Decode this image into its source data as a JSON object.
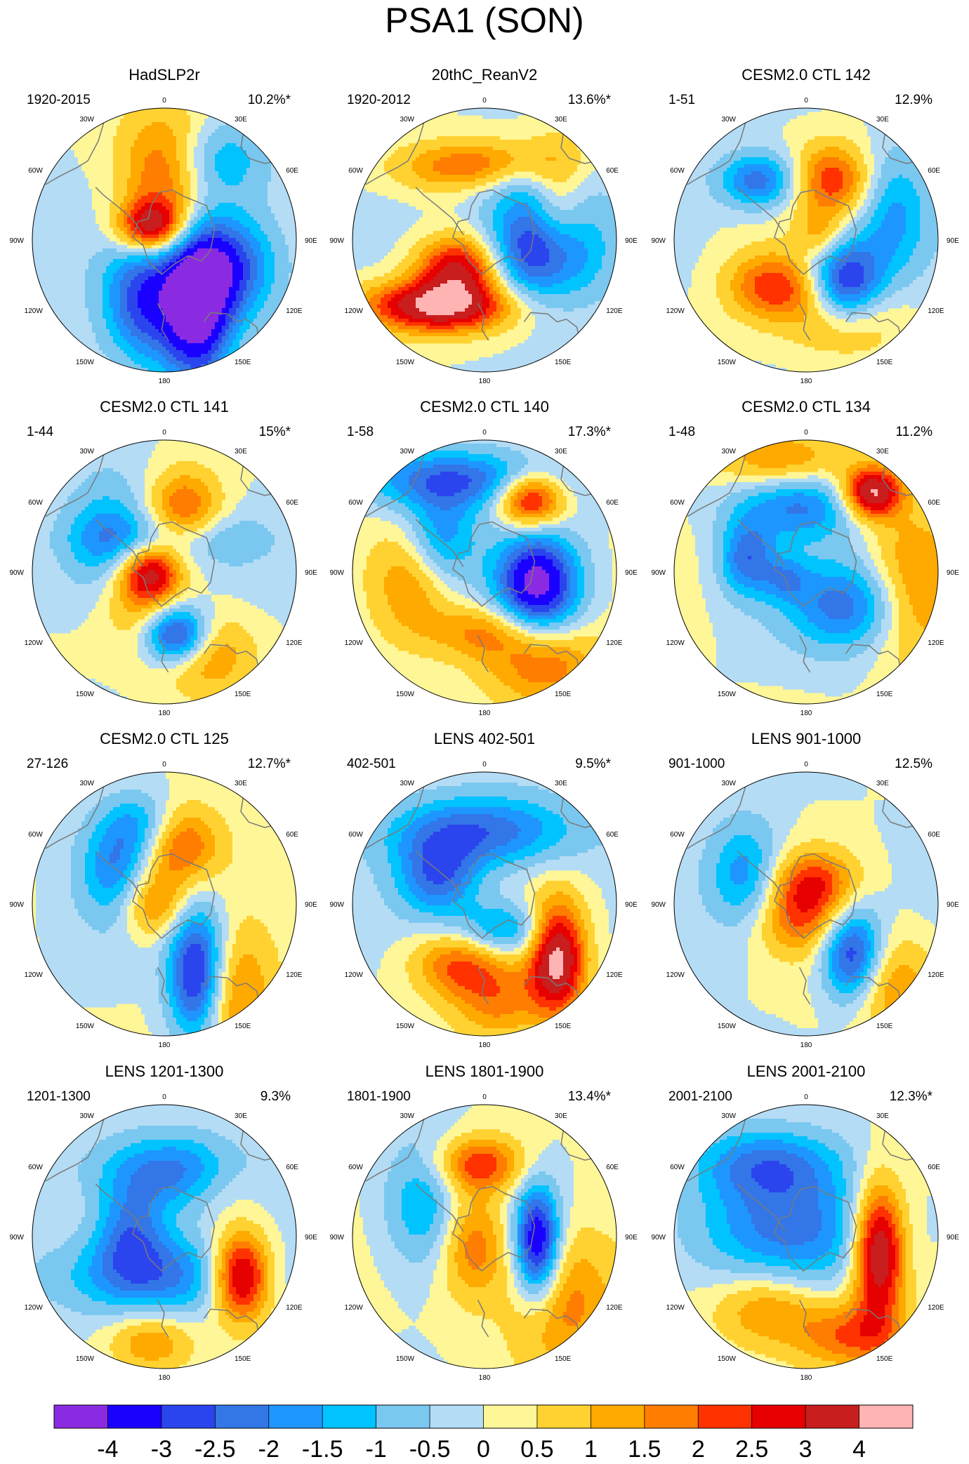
{
  "chart_data": {
    "type": "heatmap",
    "title": "PSA1 (SON)",
    "projection": "south polar stereographic",
    "longitude_labels": [
      "0",
      "30E",
      "60E",
      "90E",
      "120E",
      "150E",
      "180",
      "150W",
      "120W",
      "90W",
      "60W",
      "30W"
    ],
    "colorbar": {
      "labels": [
        "-4",
        "-3",
        "-2.5",
        "-2",
        "-1.5",
        "-1",
        "-0.5",
        "0",
        "0.5",
        "1",
        "1.5",
        "2",
        "2.5",
        "3",
        "4"
      ],
      "colors": [
        "#8a2be2",
        "#1a00ff",
        "#2b45ee",
        "#3276e8",
        "#1e96ff",
        "#00c3ff",
        "#7ac8f0",
        "#b4dcf5",
        "#fff697",
        "#ffd232",
        "#ffaa00",
        "#ff7d00",
        "#ff3200",
        "#e60000",
        "#c81e1e",
        "#ffb4b4"
      ]
    },
    "panels": [
      {
        "title": "HadSLP2r",
        "period": "1920-2015",
        "variance": "10.2%*",
        "blobs": [
          [
            -1.0,
            0.25,
            0.5,
            0.18,
            0.42
          ],
          [
            0.8,
            0.05,
            -0.55,
            0.26,
            0.3
          ],
          [
            0.9,
            -0.1,
            -0.1,
            0.18,
            0.14
          ],
          [
            -0.7,
            -0.15,
            0.45,
            0.22,
            0.34
          ],
          [
            -0.7,
            0.5,
            0.2,
            0.25,
            0.3
          ],
          [
            -0.6,
            0.3,
            -0.6,
            0.3,
            0.22
          ]
        ]
      },
      {
        "title": "20thC_ReanV2",
        "period": "1920-2012",
        "variance": "13.6%*",
        "blobs": [
          [
            -1.0,
            0.45,
            0.05,
            0.28,
            0.3
          ],
          [
            1.0,
            -0.35,
            0.5,
            0.4,
            0.14
          ],
          [
            0.75,
            -0.2,
            0.2,
            0.22,
            0.16
          ],
          [
            0.6,
            -0.05,
            -0.55,
            0.42,
            0.14
          ],
          [
            0.5,
            0.55,
            -0.2,
            0.16,
            0.35
          ],
          [
            -0.3,
            0.25,
            -0.45,
            0.35,
            0.15
          ]
        ]
      },
      {
        "title": "CESM2.0 CTL 142",
        "period": "1-51",
        "variance": "12.9%",
        "blobs": [
          [
            -1.0,
            0.3,
            0.35,
            0.2,
            0.22
          ],
          [
            0.6,
            0.2,
            -0.45,
            0.22,
            0.2
          ],
          [
            0.55,
            -0.25,
            0.35,
            0.25,
            0.18
          ],
          [
            -0.6,
            -0.35,
            -0.45,
            0.22,
            0.15
          ],
          [
            0.5,
            0.3,
            0.55,
            0.28,
            0.22
          ],
          [
            -0.4,
            0.65,
            -0.2,
            0.2,
            0.35
          ],
          [
            0.25,
            0.1,
            -0.05,
            0.12,
            0.12
          ]
        ]
      },
      {
        "title": "CESM2.0 CTL 141",
        "period": "1-44",
        "variance": "15%*",
        "blobs": [
          [
            -1.0,
            0.1,
            0.48,
            0.18,
            0.16
          ],
          [
            0.6,
            0.15,
            -0.45,
            0.2,
            0.22
          ],
          [
            0.6,
            -0.1,
            0.0,
            0.15,
            0.15
          ],
          [
            0.5,
            0.3,
            0.6,
            0.25,
            0.22
          ],
          [
            0.5,
            -0.2,
            0.1,
            0.22,
            0.3
          ],
          [
            -0.5,
            -0.4,
            -0.2,
            0.25,
            0.35
          ],
          [
            -0.4,
            0.05,
            -0.25,
            0.45,
            0.15
          ]
        ]
      },
      {
        "title": "CESM2.0 CTL 140",
        "period": "1-58",
        "variance": "17.3%*",
        "blobs": [
          [
            -1.0,
            0.4,
            0.1,
            0.22,
            0.28
          ],
          [
            0.9,
            0.35,
            -0.55,
            0.18,
            0.15
          ],
          [
            -0.6,
            -0.2,
            -0.7,
            0.55,
            0.16
          ],
          [
            -0.5,
            -0.35,
            -0.25,
            0.2,
            0.25
          ],
          [
            0.5,
            0.45,
            0.7,
            0.32,
            0.22
          ],
          [
            0.4,
            -0.55,
            0.05,
            0.2,
            0.3
          ],
          [
            0.4,
            0.0,
            0.45,
            0.3,
            0.15
          ]
        ]
      },
      {
        "title": "CESM2.0 CTL 134",
        "period": "1-48",
        "variance": "11.2%",
        "blobs": [
          [
            1.0,
            0.5,
            -0.6,
            0.16,
            0.14
          ],
          [
            -0.6,
            0.35,
            0.25,
            0.35,
            0.25
          ],
          [
            -0.5,
            -0.05,
            -0.5,
            0.35,
            0.18
          ],
          [
            -0.55,
            -0.45,
            -0.1,
            0.15,
            0.2
          ],
          [
            0.5,
            0.8,
            0.15,
            0.25,
            0.4
          ],
          [
            0.4,
            -0.2,
            -0.85,
            0.35,
            0.15
          ],
          [
            -0.3,
            -0.15,
            0.05,
            0.12,
            0.12
          ]
        ]
      },
      {
        "title": "CESM2.0 CTL 125",
        "period": "27-126",
        "variance": "12.7%*",
        "blobs": [
          [
            -1.1,
            0.25,
            0.55,
            0.16,
            0.36
          ],
          [
            0.6,
            0.1,
            -0.45,
            0.22,
            0.22
          ],
          [
            0.5,
            -0.1,
            0.0,
            0.18,
            0.18
          ],
          [
            0.55,
            0.45,
            0.7,
            0.25,
            0.35
          ],
          [
            -0.5,
            -0.35,
            -0.25,
            0.2,
            0.28
          ],
          [
            -0.4,
            -0.15,
            -0.6,
            0.2,
            0.18
          ]
        ]
      },
      {
        "title": "LENS 402-501",
        "period": "402-501",
        "variance": "9.5%*",
        "blobs": [
          [
            1.0,
            0.55,
            0.4,
            0.15,
            0.3
          ],
          [
            -0.6,
            0.0,
            -0.55,
            0.5,
            0.2
          ],
          [
            -0.55,
            -0.35,
            -0.2,
            0.22,
            0.22
          ],
          [
            -0.5,
            0.15,
            0.2,
            0.25,
            0.15
          ],
          [
            0.5,
            -0.2,
            0.45,
            0.25,
            0.18
          ],
          [
            0.4,
            0.1,
            0.75,
            0.25,
            0.22
          ]
        ]
      },
      {
        "title": "LENS 901-1000",
        "period": "901-1000",
        "variance": "12.5%",
        "blobs": [
          [
            -1.0,
            0.35,
            0.4,
            0.17,
            0.28
          ],
          [
            0.6,
            0.05,
            -0.15,
            0.25,
            0.18
          ],
          [
            0.5,
            0.55,
            0.6,
            0.28,
            0.28
          ],
          [
            0.4,
            -0.05,
            0.15,
            0.28,
            0.18
          ],
          [
            -0.5,
            -0.45,
            -0.2,
            0.2,
            0.3
          ]
        ]
      },
      {
        "title": "LENS 1201-1300",
        "period": "1201-1300",
        "variance": "9.3%",
        "blobs": [
          [
            1.0,
            0.58,
            0.3,
            0.16,
            0.24
          ],
          [
            -0.6,
            0.15,
            -0.5,
            0.45,
            0.2
          ],
          [
            -0.55,
            -0.1,
            0.3,
            0.5,
            0.22
          ],
          [
            -0.5,
            -0.25,
            -0.05,
            0.2,
            0.25
          ],
          [
            0.4,
            -0.1,
            0.8,
            0.22,
            0.16
          ],
          [
            0.3,
            0.5,
            -0.45,
            0.25,
            0.2
          ]
        ]
      },
      {
        "title": "LENS 1801-1900",
        "period": "1801-1900",
        "variance": "13.4%*",
        "blobs": [
          [
            -1.0,
            0.4,
            0.05,
            0.12,
            0.3
          ],
          [
            0.6,
            -0.05,
            -0.55,
            0.25,
            0.15
          ],
          [
            0.5,
            -0.1,
            0.05,
            0.18,
            0.3
          ],
          [
            0.45,
            0.6,
            0.5,
            0.3,
            0.4
          ],
          [
            -0.45,
            -0.45,
            -0.25,
            0.22,
            0.35
          ]
        ]
      },
      {
        "title": "LENS 2001-2100",
        "period": "2001-2100",
        "variance": "12.3%*",
        "blobs": [
          [
            1.05,
            0.55,
            0.1,
            0.14,
            0.36
          ],
          [
            -0.5,
            -0.15,
            -0.05,
            0.55,
            0.3
          ],
          [
            -0.5,
            -0.3,
            -0.55,
            0.4,
            0.2
          ],
          [
            0.4,
            -0.3,
            0.55,
            0.28,
            0.2
          ],
          [
            0.5,
            0.35,
            0.75,
            0.3,
            0.18
          ]
        ]
      }
    ]
  }
}
